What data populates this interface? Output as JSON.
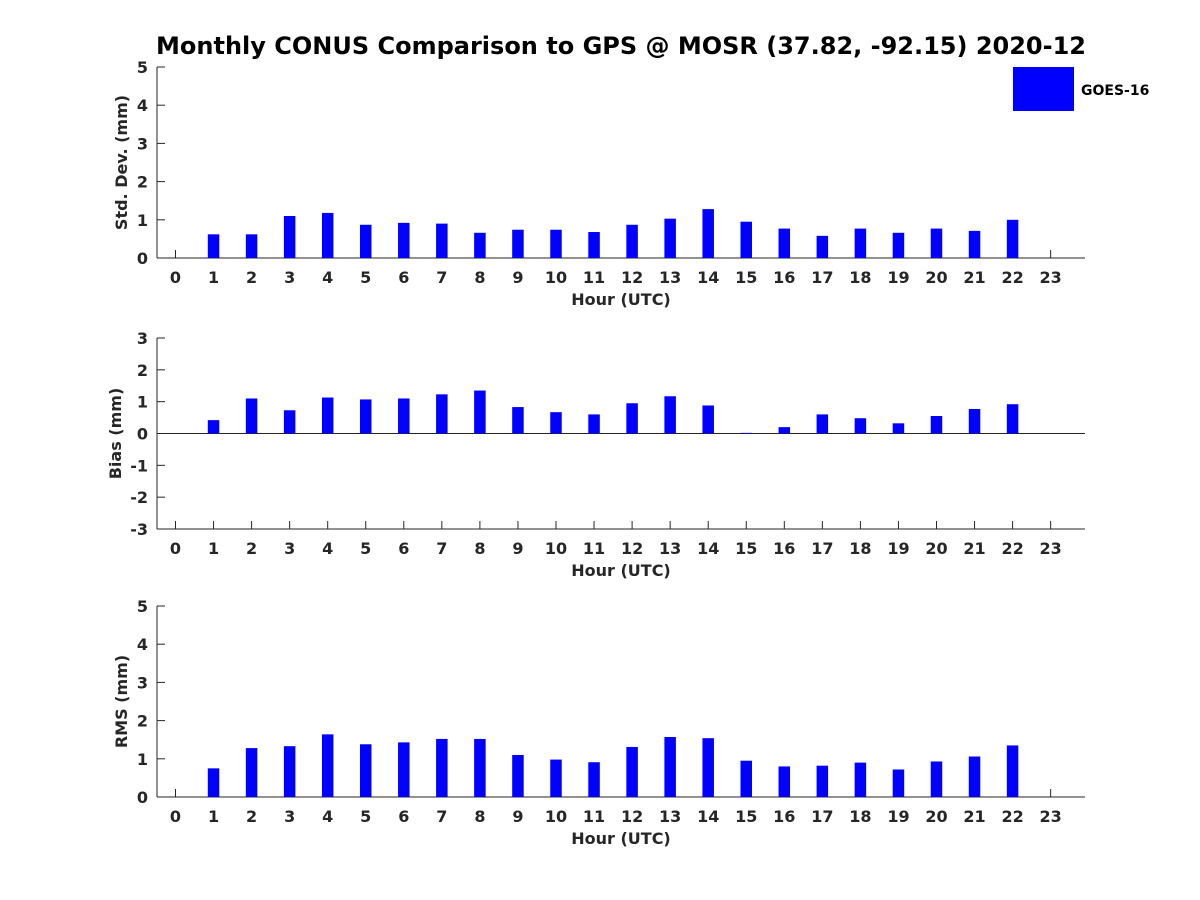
{
  "chart_data": {
    "type": "bar",
    "title": "Monthly CONUS Comparison to GPS @ MOSR (37.82, -92.15) 2020-12",
    "legend": {
      "label": "GOES-16",
      "placement": "top-right"
    },
    "colors": {
      "bar": "#0000ff",
      "axis": "#262626"
    },
    "panels": [
      {
        "ylabel": "Std. Dev. (mm)",
        "xlabel": "Hour (UTC)",
        "ylim": [
          0,
          5
        ],
        "yticks": [
          0,
          1,
          2,
          3,
          4,
          5
        ],
        "categories": [
          "0",
          "1",
          "2",
          "3",
          "4",
          "5",
          "6",
          "7",
          "8",
          "9",
          "10",
          "11",
          "12",
          "13",
          "14",
          "15",
          "16",
          "17",
          "18",
          "19",
          "20",
          "21",
          "22",
          "23"
        ],
        "series": [
          {
            "name": "GOES-16",
            "values": [
              null,
              0.62,
              0.62,
              1.1,
              1.18,
              0.87,
              0.92,
              0.9,
              0.66,
              0.74,
              0.74,
              0.68,
              0.87,
              1.03,
              1.28,
              0.95,
              0.77,
              0.58,
              0.77,
              0.66,
              0.77,
              0.71,
              1.0,
              null
            ]
          }
        ]
      },
      {
        "ylabel": "Bias (mm)",
        "xlabel": "Hour (UTC)",
        "ylim": [
          -3,
          3
        ],
        "yticks": [
          -3,
          -2,
          -1,
          0,
          1,
          2,
          3
        ],
        "zero_line": true,
        "categories": [
          "0",
          "1",
          "2",
          "3",
          "4",
          "5",
          "6",
          "7",
          "8",
          "9",
          "10",
          "11",
          "12",
          "13",
          "14",
          "15",
          "16",
          "17",
          "18",
          "19",
          "20",
          "21",
          "22",
          "23"
        ],
        "series": [
          {
            "name": "GOES-16",
            "values": [
              null,
              0.42,
              1.1,
              0.73,
              1.13,
              1.07,
              1.1,
              1.23,
              1.35,
              0.83,
              0.67,
              0.6,
              0.95,
              1.17,
              0.88,
              0.02,
              0.2,
              0.6,
              0.48,
              0.32,
              0.55,
              0.77,
              0.92,
              null
            ]
          }
        ]
      },
      {
        "ylabel": "RMS (mm)",
        "xlabel": "Hour (UTC)",
        "ylim": [
          0,
          5
        ],
        "yticks": [
          0,
          1,
          2,
          3,
          4,
          5
        ],
        "categories": [
          "0",
          "1",
          "2",
          "3",
          "4",
          "5",
          "6",
          "7",
          "8",
          "9",
          "10",
          "11",
          "12",
          "13",
          "14",
          "15",
          "16",
          "17",
          "18",
          "19",
          "20",
          "21",
          "22",
          "23"
        ],
        "series": [
          {
            "name": "GOES-16",
            "values": [
              null,
              0.75,
              1.28,
              1.33,
              1.64,
              1.38,
              1.43,
              1.52,
              1.52,
              1.1,
              0.98,
              0.91,
              1.31,
              1.57,
              1.54,
              0.95,
              0.8,
              0.82,
              0.9,
              0.72,
              0.93,
              1.06,
              1.35,
              null
            ]
          }
        ]
      }
    ]
  }
}
